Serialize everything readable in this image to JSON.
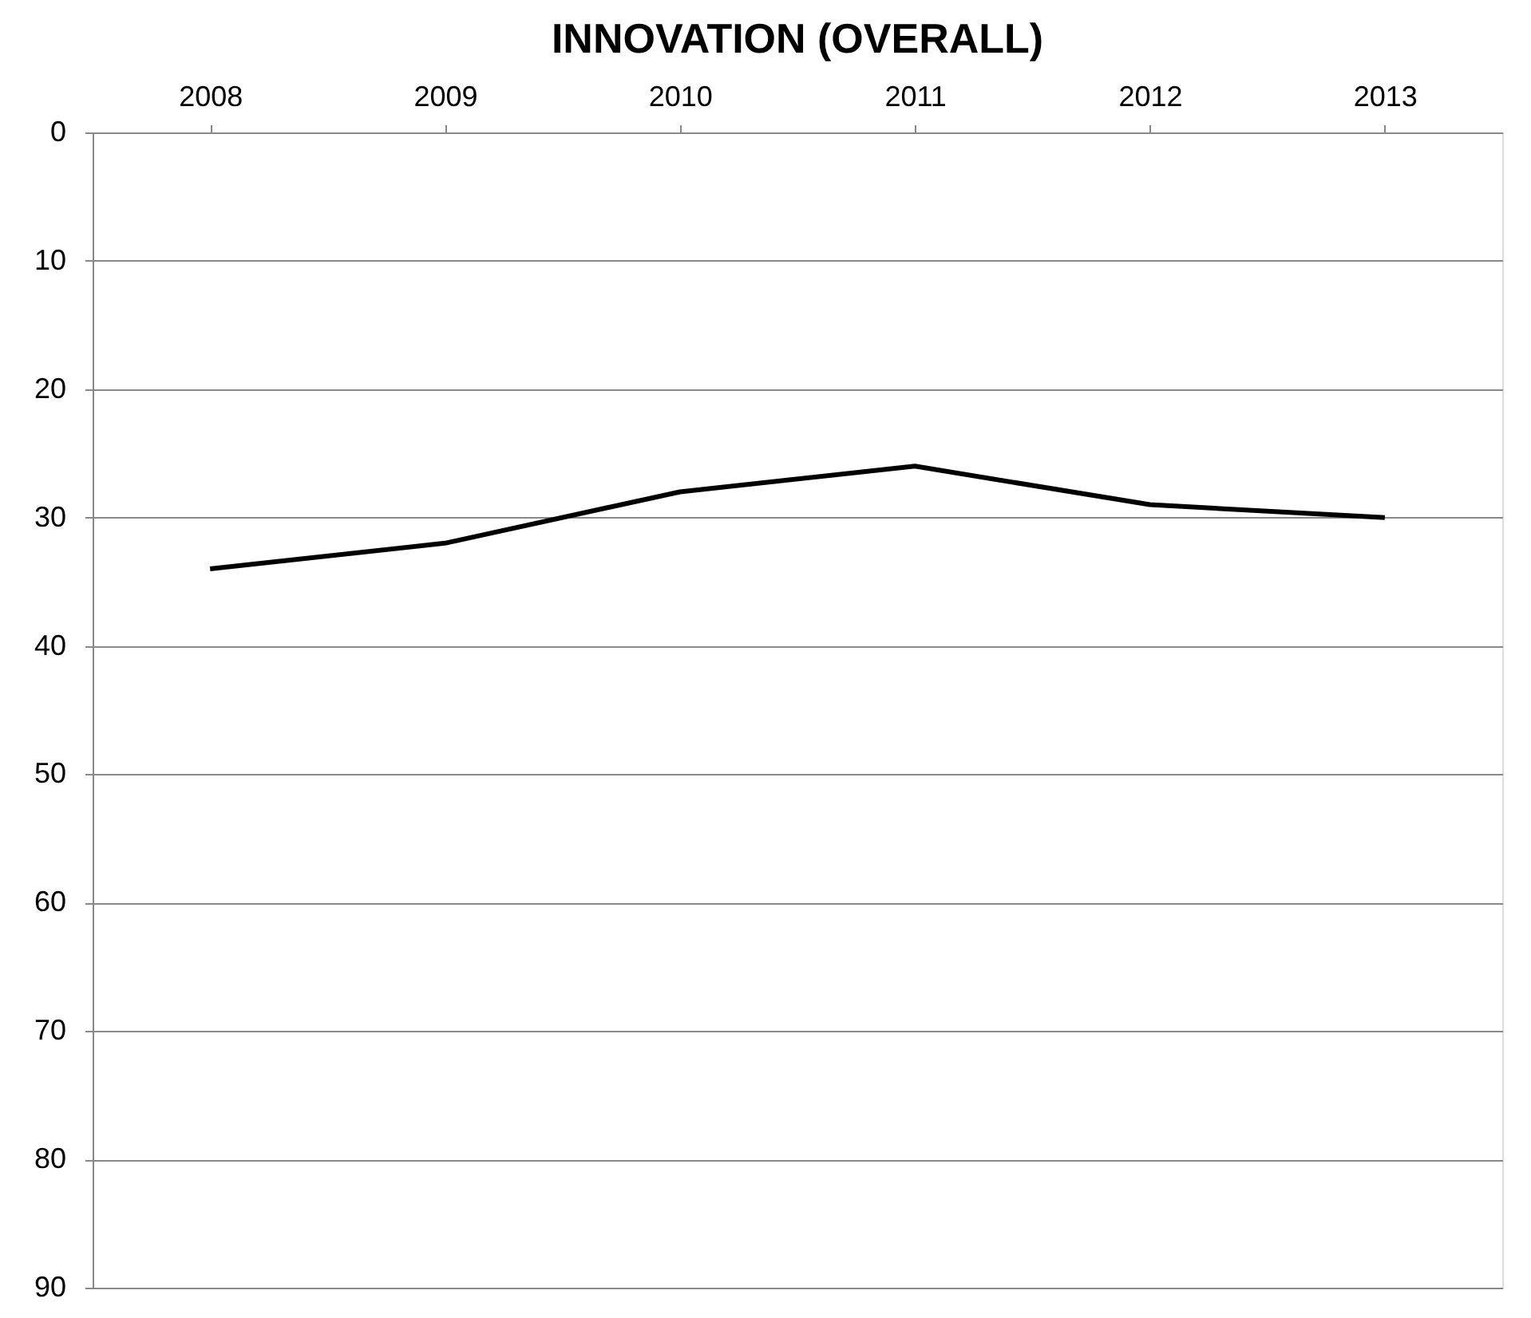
{
  "chart_data": {
    "type": "line",
    "title": "INNOVATION (OVERALL)",
    "categories": [
      "2008",
      "2009",
      "2010",
      "2011",
      "2012",
      "2013"
    ],
    "series": [
      {
        "color": "#000000",
        "values": [
          34,
          32,
          28,
          26,
          29,
          30
        ]
      }
    ],
    "ylim": [
      90,
      0
    ],
    "yticks": [
      0,
      10,
      20,
      30,
      40,
      50,
      60,
      70,
      80,
      90
    ],
    "grid": "y",
    "marker": "none",
    "line_style": "solid"
  }
}
